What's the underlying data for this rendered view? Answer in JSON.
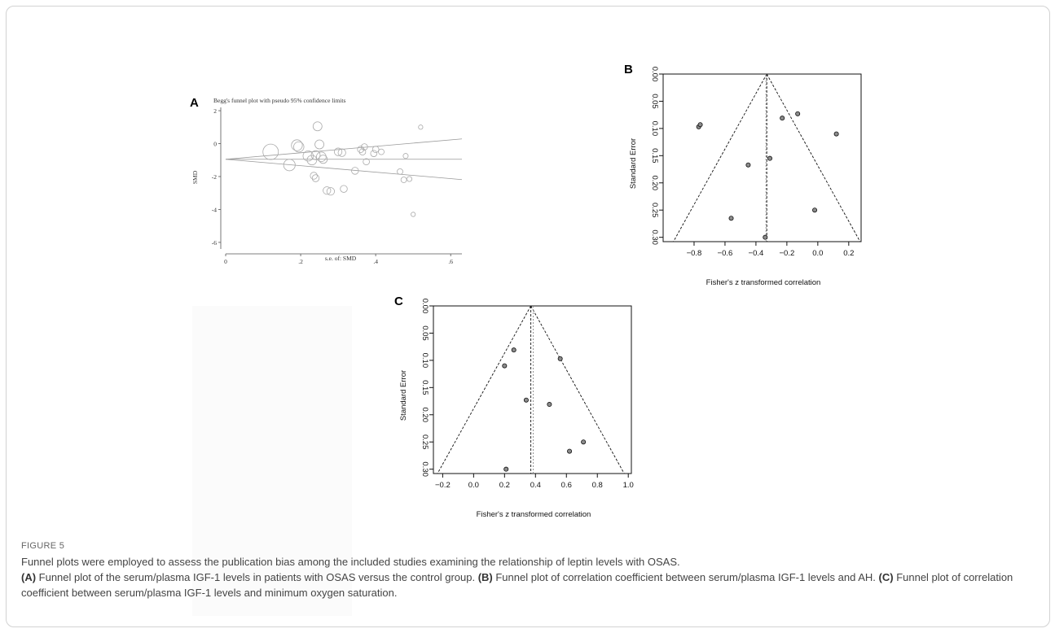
{
  "figure": {
    "label": "FIGURE 5",
    "intro": "Funnel plots were employed to assess the publication bias among the included studies examining the relationship of leptin levels with OSAS.",
    "items": [
      {
        "tag": "(A)",
        "text": " Funnel plot of the serum/plasma IGF-1 levels in patients with OSAS versus the control group. "
      },
      {
        "tag": "(B)",
        "text": " Funnel plot of correlation coefficient between serum/plasma IGF-1 levels and AH. "
      },
      {
        "tag": "(C)",
        "text": " Funnel plot of correlation coefficient between serum/plasma IGF-1 levels and minimum oxygen saturation."
      }
    ]
  },
  "chart_data": [
    {
      "panel": "A",
      "type": "scatter",
      "title": "Begg's funnel plot with pseudo 95% confidence limits",
      "xlabel": "s.e. of: SMD",
      "ylabel": "SMD",
      "xlim": [
        0,
        0.63
      ],
      "ylim": [
        -6.4,
        2.2
      ],
      "xticks": [
        0,
        0.2,
        0.4,
        0.6
      ],
      "xtick_labels": [
        "0",
        ".2",
        ".4",
        ".6"
      ],
      "yticks": [
        2,
        0,
        -2,
        -4,
        -6
      ],
      "pooled_estimate": -0.95,
      "points": [
        {
          "x": 0.12,
          "y": -0.5,
          "w": 1.0
        },
        {
          "x": 0.17,
          "y": -1.3,
          "w": 0.7
        },
        {
          "x": 0.19,
          "y": -0.1,
          "w": 0.65
        },
        {
          "x": 0.195,
          "y": -0.2,
          "w": 0.6
        },
        {
          "x": 0.22,
          "y": -0.75,
          "w": 0.6
        },
        {
          "x": 0.23,
          "y": -1.0,
          "w": 0.55
        },
        {
          "x": 0.24,
          "y": -0.7,
          "w": 0.5
        },
        {
          "x": 0.245,
          "y": 1.05,
          "w": 0.5
        },
        {
          "x": 0.25,
          "y": -0.05,
          "w": 0.5
        },
        {
          "x": 0.255,
          "y": -0.8,
          "w": 0.55
        },
        {
          "x": 0.26,
          "y": -0.95,
          "w": 0.45
        },
        {
          "x": 0.235,
          "y": -1.95,
          "w": 0.35
        },
        {
          "x": 0.24,
          "y": -2.1,
          "w": 0.35
        },
        {
          "x": 0.27,
          "y": -2.85,
          "w": 0.4
        },
        {
          "x": 0.28,
          "y": -2.9,
          "w": 0.4
        },
        {
          "x": 0.3,
          "y": -0.5,
          "w": 0.4
        },
        {
          "x": 0.31,
          "y": -0.55,
          "w": 0.4
        },
        {
          "x": 0.315,
          "y": -2.75,
          "w": 0.35
        },
        {
          "x": 0.345,
          "y": -1.65,
          "w": 0.35
        },
        {
          "x": 0.36,
          "y": -0.35,
          "w": 0.3
        },
        {
          "x": 0.365,
          "y": -0.5,
          "w": 0.3
        },
        {
          "x": 0.37,
          "y": -0.2,
          "w": 0.3
        },
        {
          "x": 0.375,
          "y": -1.1,
          "w": 0.3
        },
        {
          "x": 0.395,
          "y": -0.6,
          "w": 0.3
        },
        {
          "x": 0.4,
          "y": -0.35,
          "w": 0.3
        },
        {
          "x": 0.415,
          "y": -0.5,
          "w": 0.25
        },
        {
          "x": 0.465,
          "y": -1.7,
          "w": 0.25
        },
        {
          "x": 0.475,
          "y": -2.2,
          "w": 0.25
        },
        {
          "x": 0.48,
          "y": -0.75,
          "w": 0.2
        },
        {
          "x": 0.49,
          "y": -2.15,
          "w": 0.2
        },
        {
          "x": 0.5,
          "y": -4.3,
          "w": 0.15
        },
        {
          "x": 0.52,
          "y": 1.0,
          "w": 0.15
        }
      ]
    },
    {
      "panel": "B",
      "type": "scatter",
      "xlabel": "Fisher's z transformed correlation",
      "ylabel": "Standard Error",
      "xlim": [
        -1.0,
        0.28
      ],
      "ylim": [
        0.308,
        0.0
      ],
      "xticks": [
        -0.8,
        -0.6,
        -0.4,
        -0.2,
        0.0,
        0.2
      ],
      "xtick_labels": [
        "−0.8",
        "−0.6",
        "−0.4",
        "−0.2",
        "0.0",
        "0.2"
      ],
      "yticks": [
        0.0,
        0.05,
        0.1,
        0.15,
        0.2,
        0.25,
        0.3
      ],
      "ytick_labels": [
        "0.00",
        "0.05",
        "0.10",
        "0.15",
        "0.20",
        "0.25",
        "0.30"
      ],
      "estimate": -0.33,
      "estimate_alt": -0.335,
      "funnel_max_se": 0.308,
      "points": [
        {
          "x": -0.77,
          "y": 0.097
        },
        {
          "x": -0.76,
          "y": 0.093
        },
        {
          "x": -0.56,
          "y": 0.265
        },
        {
          "x": -0.45,
          "y": 0.167
        },
        {
          "x": -0.34,
          "y": 0.3
        },
        {
          "x": -0.31,
          "y": 0.155
        },
        {
          "x": -0.23,
          "y": 0.081
        },
        {
          "x": -0.13,
          "y": 0.073
        },
        {
          "x": -0.02,
          "y": 0.25
        },
        {
          "x": 0.12,
          "y": 0.11
        }
      ]
    },
    {
      "panel": "C",
      "type": "scatter",
      "xlabel": "Fisher's z transformed correlation",
      "ylabel": "Standard Error",
      "xlim": [
        -0.26,
        1.02
      ],
      "ylim": [
        0.308,
        0.0
      ],
      "xticks": [
        -0.2,
        0.0,
        0.2,
        0.4,
        0.6,
        0.8,
        1.0
      ],
      "xtick_labels": [
        "−0.2",
        "0.0",
        "0.2",
        "0.4",
        "0.6",
        "0.8",
        "1.0"
      ],
      "yticks": [
        0.0,
        0.05,
        0.1,
        0.15,
        0.2,
        0.25,
        0.3
      ],
      "ytick_labels": [
        "0.00",
        "0.05",
        "0.10",
        "0.15",
        "0.20",
        "0.25",
        "0.30"
      ],
      "estimate": 0.37,
      "estimate_alt": 0.385,
      "funnel_max_se": 0.308,
      "points": [
        {
          "x": 0.2,
          "y": 0.11
        },
        {
          "x": 0.26,
          "y": 0.081
        },
        {
          "x": 0.34,
          "y": 0.173
        },
        {
          "x": 0.21,
          "y": 0.3
        },
        {
          "x": 0.49,
          "y": 0.181
        },
        {
          "x": 0.56,
          "y": 0.097
        },
        {
          "x": 0.62,
          "y": 0.267
        },
        {
          "x": 0.71,
          "y": 0.25
        }
      ]
    }
  ]
}
